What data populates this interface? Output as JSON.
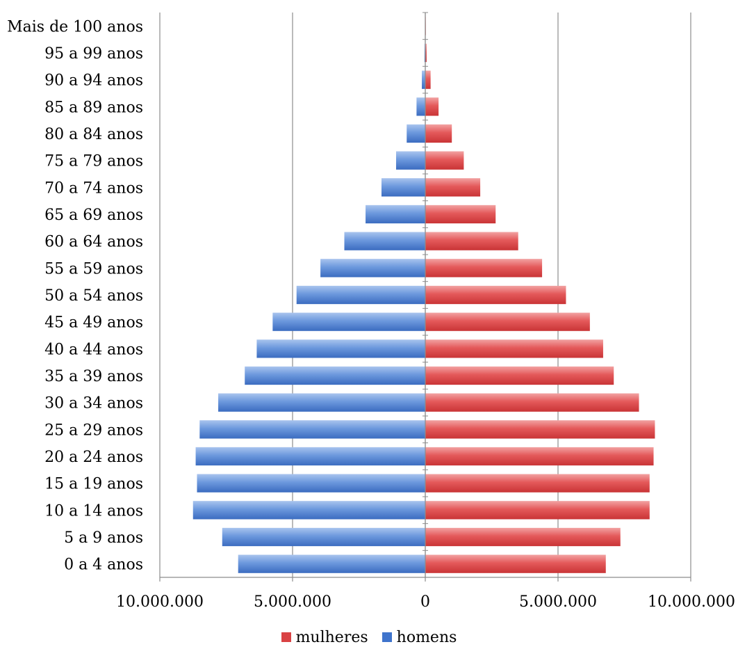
{
  "chart_data": {
    "type": "bar",
    "orientation": "horizontal",
    "subtype": "population-pyramid",
    "categories": [
      "0 a 4 anos",
      "5 a 9 anos",
      "10 a 14 anos",
      "15 a 19 anos",
      "20 a 24 anos",
      "25 a 29 anos",
      "30 a 34 anos",
      "35 a 39 anos",
      "40 a 44 anos",
      "45 a 49 anos",
      "50 a 54 anos",
      "55 a 59 anos",
      "60 a 64 anos",
      "65 a 69 anos",
      "70 a 74 anos",
      "75 a 79 anos",
      "80 a 84 anos",
      "85 a 89 anos",
      "90 a 94 anos",
      "95 a 99 anos",
      "Mais de 100 anos"
    ],
    "series": [
      {
        "name": "mulheres",
        "color": "#e04a4c",
        "side": "right",
        "values": [
          6800000,
          7350000,
          8450000,
          8450000,
          8600000,
          8650000,
          8050000,
          7100000,
          6700000,
          6200000,
          5300000,
          4400000,
          3500000,
          2650000,
          2070000,
          1450000,
          1000000,
          500000,
          200000,
          50000,
          20000
        ]
      },
      {
        "name": "homens",
        "color": "#4a7fd1",
        "side": "left",
        "values": [
          7050000,
          7650000,
          8750000,
          8600000,
          8650000,
          8500000,
          7800000,
          6800000,
          6350000,
          5750000,
          4850000,
          3950000,
          3050000,
          2250000,
          1650000,
          1100000,
          700000,
          330000,
          130000,
          30000,
          10000
        ]
      }
    ],
    "x_ticks": [
      "10.000.000",
      "5.000.000",
      "0",
      "5.000.000",
      "10.000.000"
    ],
    "xlim": [
      -10000000,
      10000000
    ],
    "grid": "vertical",
    "legend_position": "bottom"
  }
}
